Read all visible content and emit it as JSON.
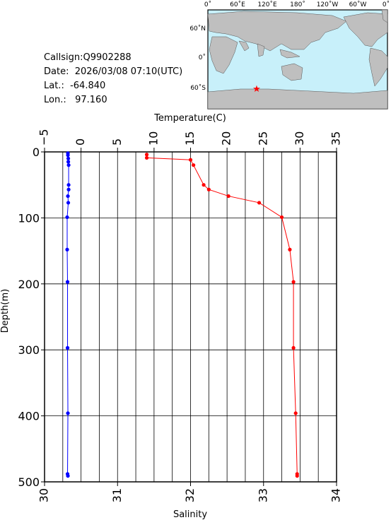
{
  "info": {
    "callsign": "Callsign:Q9902288",
    "date": "Date:  2026/03/08 07:10(UTC)",
    "lat": "Lat.:  -64.840",
    "lon": "Lon.:   97.160"
  },
  "map": {
    "top_ticks": [
      "0˚",
      "60˚E",
      "120˚E",
      "180˚",
      "120˚W",
      "60˚W",
      "0˚"
    ],
    "right_ticks": [
      "60˚N",
      "0˚",
      "60˚S"
    ],
    "marker": {
      "lon": 97.16,
      "lat": -64.84
    },
    "colors": {
      "ocean": "#c8f0fa",
      "land": "#bfbfbf",
      "marker": "#ff0000"
    }
  },
  "chart_data": {
    "type": "line",
    "xlabel_top": "Temperature(C)",
    "xlabel_bottom": "Salinity",
    "ylabel": "Depth(m)",
    "temperature_ticks": [
      "−5",
      "0",
      "5",
      "10",
      "15",
      "20",
      "25",
      "30",
      "35"
    ],
    "salinity_ticks": [
      "30",
      "31",
      "32",
      "33",
      "34"
    ],
    "depth_ticks": [
      "0",
      "100",
      "200",
      "300",
      "400",
      "500"
    ],
    "temperature_range": [
      -5,
      35
    ],
    "salinity_range": [
      30,
      34
    ],
    "depth_range": [
      0,
      500
    ],
    "grid": true,
    "series": [
      {
        "color": "#ff0000",
        "axis": "salinity",
        "points": [
          [
            31.4,
            4
          ],
          [
            31.4,
            9
          ],
          [
            32.0,
            12
          ],
          [
            32.04,
            20
          ],
          [
            32.18,
            50
          ],
          [
            32.25,
            57
          ],
          [
            32.52,
            67
          ],
          [
            32.94,
            77
          ],
          [
            33.25,
            99
          ],
          [
            33.36,
            148
          ],
          [
            33.41,
            197
          ],
          [
            33.41,
            297
          ],
          [
            33.44,
            396
          ],
          [
            33.46,
            488
          ],
          [
            33.46,
            491
          ]
        ]
      },
      {
        "color": "#0000ff",
        "axis": "temperature",
        "points": [
          [
            -1.8,
            2
          ],
          [
            -1.8,
            5
          ],
          [
            -1.75,
            10
          ],
          [
            -1.75,
            15
          ],
          [
            -1.7,
            20
          ],
          [
            -1.7,
            50
          ],
          [
            -1.7,
            57
          ],
          [
            -1.8,
            67
          ],
          [
            -1.75,
            77
          ],
          [
            -1.9,
            99
          ],
          [
            -1.9,
            148
          ],
          [
            -1.85,
            197
          ],
          [
            -1.85,
            297
          ],
          [
            -1.8,
            396
          ],
          [
            -1.85,
            488
          ],
          [
            -1.8,
            491
          ]
        ]
      }
    ]
  }
}
